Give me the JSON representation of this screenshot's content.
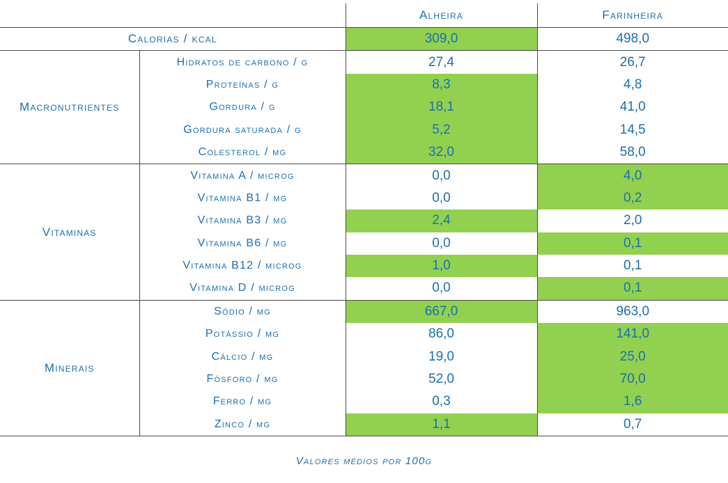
{
  "columns": {
    "alheira": "Alheira",
    "farinheira": "Farinheira"
  },
  "calorias": {
    "label": "Calorias / kcal",
    "alheira": "309,0",
    "farinheira": "498,0",
    "highlight": "alheira"
  },
  "groups": [
    {
      "name": "Macronutrientes",
      "rows": [
        {
          "label": "Hidratos de carbono / g",
          "alheira": "27,4",
          "farinheira": "26,7",
          "highlight": ""
        },
        {
          "label": "Proteínas / g",
          "alheira": "8,3",
          "farinheira": "4,8",
          "highlight": "alheira"
        },
        {
          "label": "Gordura / g",
          "alheira": "18,1",
          "farinheira": "41,0",
          "highlight": "alheira"
        },
        {
          "label": "Gordura saturada / g",
          "alheira": "5,2",
          "farinheira": "14,5",
          "highlight": "alheira"
        },
        {
          "label": "Colesterol / mg",
          "alheira": "32,0",
          "farinheira": "58,0",
          "highlight": "alheira"
        }
      ]
    },
    {
      "name": "Vitaminas",
      "rows": [
        {
          "label": "Vitamina A / microg",
          "alheira": "0,0",
          "farinheira": "4,0",
          "highlight": "farinheira"
        },
        {
          "label": "Vitamina B1 / mg",
          "alheira": "0,0",
          "farinheira": "0,2",
          "highlight": "farinheira"
        },
        {
          "label": "Vitamina B3 / mg",
          "alheira": "2,4",
          "farinheira": "2,0",
          "highlight": "alheira"
        },
        {
          "label": "Vitamina B6 / mg",
          "alheira": "0,0",
          "farinheira": "0,1",
          "highlight": "farinheira"
        },
        {
          "label": "Vitamina B12 / microg",
          "alheira": "1,0",
          "farinheira": "0,1",
          "highlight": "alheira"
        },
        {
          "label": "Vitamina D / microg",
          "alheira": "0,0",
          "farinheira": "0,1",
          "highlight": "farinheira"
        }
      ]
    },
    {
      "name": "Minerais",
      "rows": [
        {
          "label": "Sódio / mg",
          "alheira": "667,0",
          "farinheira": "963,0",
          "highlight": "alheira"
        },
        {
          "label": "Potássio / mg",
          "alheira": "86,0",
          "farinheira": "141,0",
          "highlight": "farinheira"
        },
        {
          "label": "Cálcio / mg",
          "alheira": "19,0",
          "farinheira": "25,0",
          "highlight": "farinheira"
        },
        {
          "label": "Fósforo / mg",
          "alheira": "52,0",
          "farinheira": "70,0",
          "highlight": "farinheira"
        },
        {
          "label": "Ferro / mg",
          "alheira": "0,3",
          "farinheira": "1,6",
          "highlight": "farinheira"
        },
        {
          "label": "Zinco / mg",
          "alheira": "1,1",
          "farinheira": "0,7",
          "highlight": "alheira"
        }
      ]
    }
  ],
  "footnote": "Valores médios por 100g",
  "colors": {
    "text": "#1a6fb0",
    "highlight": "#92d050",
    "rule": "#4a4a4a"
  }
}
